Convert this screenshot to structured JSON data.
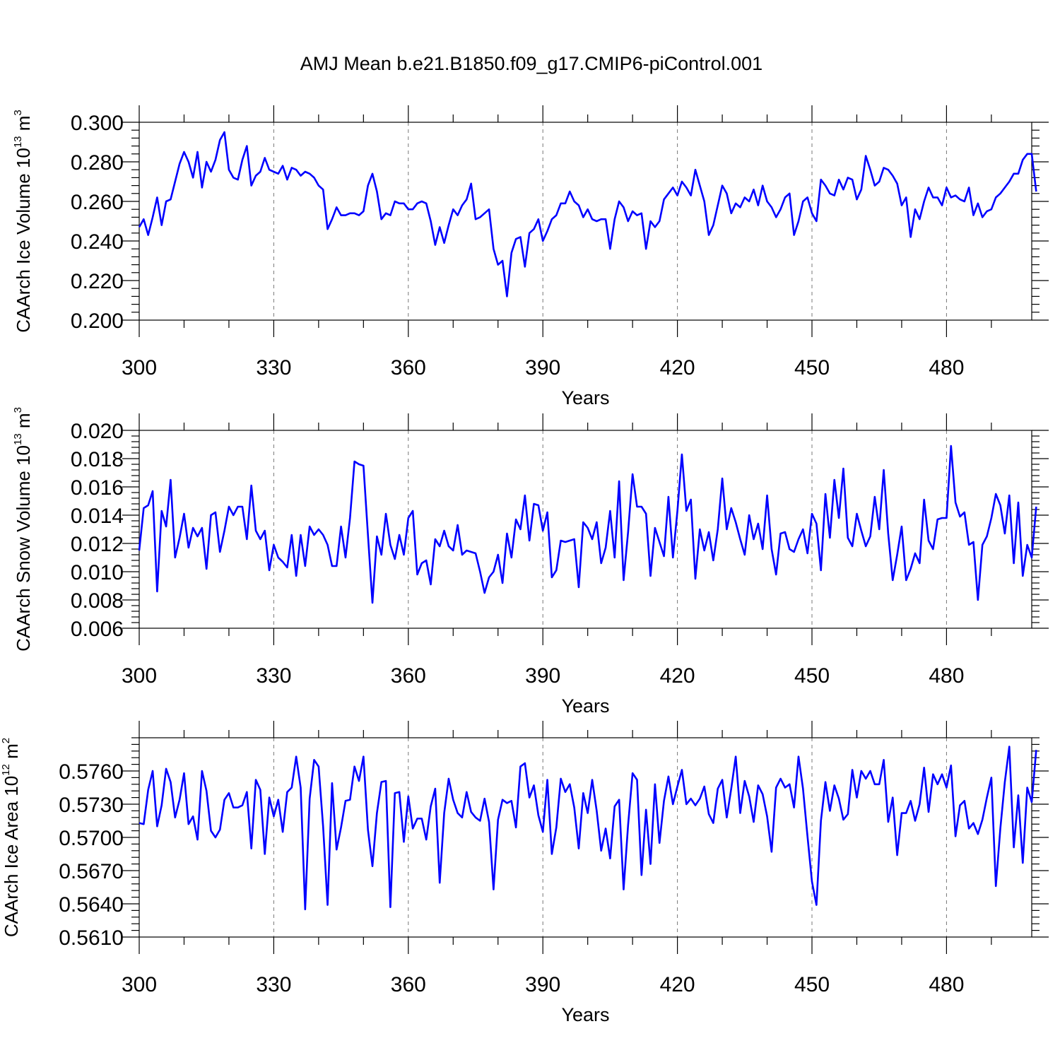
{
  "title": "AMJ Mean b.e21.B1850.f09_g17.CMIP6-piControl.001",
  "line_color": "#0000ff",
  "chart_data": [
    {
      "type": "line",
      "title": "AMJ Mean b.e21.B1850.f09_g17.CMIP6-piControl.001",
      "xlabel": "Years",
      "ylabel": {
        "text": "CAArch Ice Volume 10",
        "exp": "13",
        "unit": " m",
        "unit_exp": "3"
      },
      "xlim": [
        300,
        499
      ],
      "ylim": [
        0.2,
        0.3
      ],
      "xticks": [
        300,
        330,
        360,
        390,
        420,
        450,
        480
      ],
      "xtick_labels": [
        "300",
        "330",
        "360",
        "390",
        "420",
        "450",
        "480"
      ],
      "yticks": [
        0.2,
        0.22,
        0.24,
        0.26,
        0.28,
        0.3
      ],
      "ytick_labels": [
        "0.200",
        "0.220",
        "0.240",
        "0.260",
        "0.280",
        "0.300"
      ],
      "y_minor_step": 0.004,
      "x_minor_step": 10,
      "grid": "vertical dashed at major x ticks",
      "x_start": 300,
      "values": [
        0.247,
        0.251,
        0.243,
        0.252,
        0.262,
        0.248,
        0.26,
        0.261,
        0.27,
        0.279,
        0.285,
        0.28,
        0.272,
        0.285,
        0.267,
        0.28,
        0.275,
        0.281,
        0.291,
        0.295,
        0.276,
        0.272,
        0.271,
        0.281,
        0.288,
        0.268,
        0.273,
        0.275,
        0.282,
        0.276,
        0.275,
        0.274,
        0.278,
        0.271,
        0.277,
        0.276,
        0.273,
        0.275,
        0.274,
        0.272,
        0.268,
        0.266,
        0.246,
        0.251,
        0.257,
        0.253,
        0.253,
        0.254,
        0.254,
        0.253,
        0.255,
        0.268,
        0.274,
        0.265,
        0.251,
        0.254,
        0.253,
        0.26,
        0.259,
        0.259,
        0.256,
        0.256,
        0.259,
        0.26,
        0.259,
        0.25,
        0.238,
        0.247,
        0.239,
        0.248,
        0.256,
        0.253,
        0.258,
        0.261,
        0.269,
        0.251,
        0.252,
        0.254,
        0.256,
        0.236,
        0.228,
        0.23,
        0.212,
        0.234,
        0.241,
        0.242,
        0.227,
        0.244,
        0.246,
        0.251,
        0.24,
        0.245,
        0.251,
        0.253,
        0.259,
        0.259,
        0.265,
        0.26,
        0.258,
        0.252,
        0.256,
        0.251,
        0.25,
        0.251,
        0.251,
        0.236,
        0.251,
        0.26,
        0.257,
        0.25,
        0.255,
        0.253,
        0.254,
        0.236,
        0.25,
        0.247,
        0.25,
        0.261,
        0.264,
        0.267,
        0.263,
        0.27,
        0.267,
        0.263,
        0.276,
        0.268,
        0.26,
        0.243,
        0.248,
        0.258,
        0.268,
        0.264,
        0.254,
        0.259,
        0.257,
        0.262,
        0.26,
        0.266,
        0.258,
        0.268,
        0.26,
        0.257,
        0.252,
        0.256,
        0.262,
        0.264,
        0.243,
        0.25,
        0.26,
        0.262,
        0.254,
        0.25,
        0.271,
        0.268,
        0.264,
        0.263,
        0.271,
        0.266,
        0.272,
        0.271,
        0.261,
        0.266,
        0.283,
        0.276,
        0.268,
        0.27,
        0.277,
        0.276,
        0.273,
        0.269,
        0.258,
        0.262,
        0.242,
        0.256,
        0.251,
        0.26,
        0.267,
        0.262,
        0.262,
        0.258,
        0.267,
        0.262,
        0.263,
        0.261,
        0.26,
        0.267,
        0.253,
        0.259,
        0.252,
        0.255,
        0.256,
        0.262,
        0.264,
        0.267,
        0.27,
        0.274,
        0.274,
        0.281,
        0.284,
        0.284,
        0.265
      ]
    },
    {
      "type": "line",
      "xlabel": "Years",
      "ylabel": {
        "text": "CAArch Snow Volume 10",
        "exp": "13",
        "unit": " m",
        "unit_exp": "3"
      },
      "xlim": [
        300,
        499
      ],
      "ylim": [
        0.006,
        0.02
      ],
      "xticks": [
        300,
        330,
        360,
        390,
        420,
        450,
        480
      ],
      "xtick_labels": [
        "300",
        "330",
        "360",
        "390",
        "420",
        "450",
        "480"
      ],
      "yticks": [
        0.006,
        0.008,
        0.01,
        0.012,
        0.014,
        0.016,
        0.018,
        0.02
      ],
      "ytick_labels": [
        "0.006",
        "0.008",
        "0.010",
        "0.012",
        "0.014",
        "0.016",
        "0.018",
        "0.020"
      ],
      "y_minor_step": 0.0004,
      "x_minor_step": 10,
      "grid": "vertical dashed at major x ticks",
      "x_start": 300,
      "values": [
        0.0115,
        0.0145,
        0.0147,
        0.0157,
        0.0086,
        0.0143,
        0.0132,
        0.0165,
        0.011,
        0.0124,
        0.0141,
        0.0117,
        0.0131,
        0.0125,
        0.0131,
        0.0102,
        0.014,
        0.0142,
        0.0114,
        0.0129,
        0.0146,
        0.014,
        0.0146,
        0.0146,
        0.0123,
        0.0161,
        0.0129,
        0.0123,
        0.0129,
        0.0101,
        0.0119,
        0.011,
        0.0107,
        0.0103,
        0.0126,
        0.0097,
        0.0126,
        0.0104,
        0.0132,
        0.0126,
        0.013,
        0.0126,
        0.0119,
        0.0104,
        0.0104,
        0.0132,
        0.011,
        0.0138,
        0.0178,
        0.0176,
        0.0175,
        0.0126,
        0.0078,
        0.0125,
        0.0112,
        0.0141,
        0.0119,
        0.0109,
        0.0126,
        0.0112,
        0.0138,
        0.0143,
        0.0098,
        0.0106,
        0.0108,
        0.0091,
        0.0123,
        0.0118,
        0.0129,
        0.0118,
        0.0115,
        0.0133,
        0.0112,
        0.0115,
        0.0114,
        0.0113,
        0.01,
        0.0085,
        0.0096,
        0.01,
        0.0112,
        0.0092,
        0.0127,
        0.011,
        0.0137,
        0.013,
        0.0154,
        0.0122,
        0.0148,
        0.0147,
        0.0129,
        0.0142,
        0.0096,
        0.0101,
        0.0122,
        0.0121,
        0.0122,
        0.0123,
        0.0089,
        0.0135,
        0.0131,
        0.0123,
        0.0135,
        0.0106,
        0.0117,
        0.0143,
        0.011,
        0.0164,
        0.0094,
        0.0128,
        0.0169,
        0.0146,
        0.0146,
        0.0141,
        0.0097,
        0.0131,
        0.0121,
        0.0111,
        0.0153,
        0.011,
        0.0143,
        0.0183,
        0.0143,
        0.0151,
        0.0095,
        0.013,
        0.0115,
        0.0128,
        0.0108,
        0.013,
        0.0166,
        0.013,
        0.0145,
        0.0135,
        0.0123,
        0.0112,
        0.014,
        0.0123,
        0.0134,
        0.0116,
        0.0154,
        0.0116,
        0.0098,
        0.0127,
        0.0128,
        0.0116,
        0.0114,
        0.0123,
        0.013,
        0.0113,
        0.0141,
        0.0134,
        0.0101,
        0.0155,
        0.0124,
        0.0165,
        0.0138,
        0.0173,
        0.0124,
        0.0118,
        0.0141,
        0.0129,
        0.0118,
        0.0125,
        0.0153,
        0.013,
        0.0172,
        0.0127,
        0.0094,
        0.0112,
        0.0132,
        0.0094,
        0.0102,
        0.0113,
        0.0106,
        0.0151,
        0.0122,
        0.0116,
        0.0137,
        0.0138,
        0.0138,
        0.0189,
        0.0149,
        0.0139,
        0.0142,
        0.0119,
        0.0121,
        0.008,
        0.0119,
        0.0125,
        0.0138,
        0.0155,
        0.0147,
        0.0127,
        0.0154,
        0.0106,
        0.0149,
        0.0097,
        0.0119,
        0.011,
        0.0146
      ]
    },
    {
      "type": "line",
      "xlabel": "Years",
      "ylabel": {
        "text": "CAArch Ice Area 10",
        "exp": "12",
        "unit": " m",
        "unit_exp": "2"
      },
      "xlim": [
        300,
        499
      ],
      "ylim": [
        0.561,
        0.579
      ],
      "xticks": [
        300,
        330,
        360,
        390,
        420,
        450,
        480
      ],
      "xtick_labels": [
        "300",
        "330",
        "360",
        "390",
        "420",
        "450",
        "480"
      ],
      "yticks": [
        0.561,
        0.564,
        0.567,
        0.57,
        0.573,
        0.576
      ],
      "ytick_labels": [
        "0.5610",
        "0.5640",
        "0.5670",
        "0.5700",
        "0.5730",
        "0.5760"
      ],
      "y_minor_step": 0.0006,
      "x_minor_step": 10,
      "grid": "vertical dashed at major x ticks",
      "x_start": 300,
      "values": [
        0.5713,
        0.5712,
        0.5743,
        0.576,
        0.571,
        0.5729,
        0.5762,
        0.575,
        0.5718,
        0.5734,
        0.5758,
        0.5712,
        0.5719,
        0.5698,
        0.576,
        0.5742,
        0.5706,
        0.57,
        0.5707,
        0.5734,
        0.574,
        0.5727,
        0.5727,
        0.5729,
        0.5741,
        0.569,
        0.5752,
        0.5743,
        0.5685,
        0.5736,
        0.5719,
        0.5734,
        0.5705,
        0.5741,
        0.5745,
        0.5773,
        0.5745,
        0.5635,
        0.5735,
        0.577,
        0.5764,
        0.571,
        0.5639,
        0.5749,
        0.5689,
        0.5709,
        0.5733,
        0.5734,
        0.5764,
        0.5751,
        0.5773,
        0.5707,
        0.5674,
        0.5722,
        0.575,
        0.5751,
        0.5637,
        0.574,
        0.5741,
        0.5696,
        0.5737,
        0.5708,
        0.5717,
        0.5717,
        0.5698,
        0.5728,
        0.5744,
        0.5659,
        0.5722,
        0.5753,
        0.5734,
        0.5722,
        0.5718,
        0.5741,
        0.5723,
        0.5718,
        0.5715,
        0.5735,
        0.5714,
        0.5653,
        0.5716,
        0.5734,
        0.5731,
        0.5733,
        0.5709,
        0.5764,
        0.5767,
        0.5736,
        0.5747,
        0.572,
        0.5705,
        0.5752,
        0.5685,
        0.5709,
        0.5753,
        0.5741,
        0.5748,
        0.5727,
        0.569,
        0.574,
        0.5722,
        0.5752,
        0.5724,
        0.5688,
        0.5708,
        0.5681,
        0.5728,
        0.5734,
        0.5653,
        0.5711,
        0.5758,
        0.5752,
        0.5666,
        0.5725,
        0.5676,
        0.5748,
        0.5695,
        0.5733,
        0.5755,
        0.573,
        0.5746,
        0.5761,
        0.573,
        0.5735,
        0.5729,
        0.5735,
        0.5746,
        0.5721,
        0.5713,
        0.5744,
        0.5752,
        0.5718,
        0.5744,
        0.5773,
        0.5722,
        0.5751,
        0.5737,
        0.5714,
        0.5747,
        0.5739,
        0.5719,
        0.5687,
        0.5745,
        0.5753,
        0.5745,
        0.5748,
        0.5727,
        0.5773,
        0.5744,
        0.5701,
        0.566,
        0.5639,
        0.5715,
        0.575,
        0.5724,
        0.5747,
        0.5735,
        0.5716,
        0.5721,
        0.5761,
        0.5736,
        0.576,
        0.5753,
        0.576,
        0.5748,
        0.5748,
        0.577,
        0.5714,
        0.5736,
        0.5684,
        0.5722,
        0.5722,
        0.5733,
        0.5715,
        0.573,
        0.5763,
        0.5723,
        0.5757,
        0.5748,
        0.5757,
        0.5745,
        0.5765,
        0.5701,
        0.5729,
        0.5733,
        0.5708,
        0.5713,
        0.5703,
        0.5716,
        0.5736,
        0.5754,
        0.5656,
        0.5708,
        0.575,
        0.5782,
        0.5691,
        0.5738,
        0.5677,
        0.5745,
        0.5732,
        0.5779
      ]
    }
  ]
}
